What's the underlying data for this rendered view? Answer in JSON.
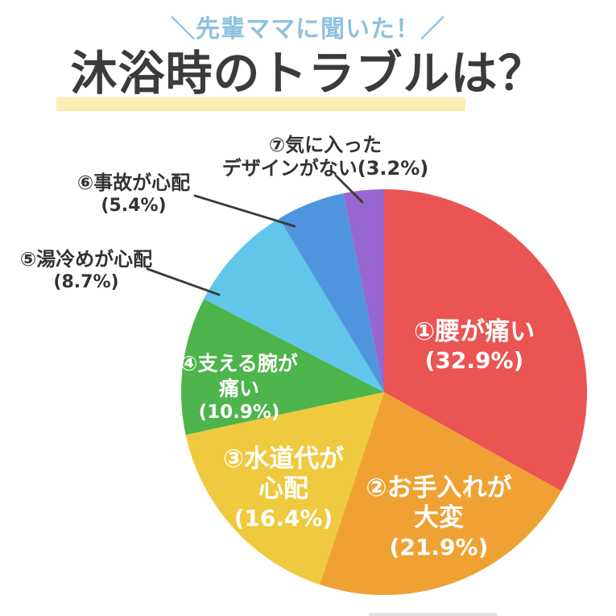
{
  "header": {
    "subtitle": "＼先輩ママに聞いた！／",
    "title": "沐浴時のトラブルは？"
  },
  "chart_data": {
    "type": "pie",
    "title": "沐浴時のトラブルは？",
    "subtitle": "先輩ママに聞いた！",
    "unit": "%",
    "start_angle": "12 o'clock",
    "direction": "clockwise",
    "segments": [
      {
        "rank": 1,
        "label": "腰が痛い",
        "value": 32.9,
        "color": "#EA5452",
        "label_placement": "inside",
        "display": [
          "①腰が痛い",
          "(32.9%)"
        ]
      },
      {
        "rank": 2,
        "label": "お手入れが大変",
        "value": 21.9,
        "color": "#EFA233",
        "label_placement": "inside",
        "display": [
          "②お手入れが",
          "大変",
          "(21.9%)"
        ]
      },
      {
        "rank": 3,
        "label": "水道代が心配",
        "value": 16.4,
        "color": "#EFC93E",
        "label_placement": "inside",
        "display": [
          "③水道代が",
          "心配",
          "(16.4%)"
        ]
      },
      {
        "rank": 4,
        "label": "支える腕が痛い",
        "value": 10.9,
        "color": "#4DB54B",
        "label_placement": "inside",
        "display": [
          "④支える腕が",
          "痛い",
          "(10.9%)"
        ]
      },
      {
        "rank": 5,
        "label": "湯冷めが心配",
        "value": 8.7,
        "color": "#61C6EA",
        "label_placement": "outside",
        "display": [
          "⑤湯冷めが心配",
          "(8.7%)"
        ]
      },
      {
        "rank": 6,
        "label": "事故が心配",
        "value": 5.4,
        "color": "#4F95DD",
        "label_placement": "outside",
        "display": [
          "⑥事故が心配",
          "(5.4%)"
        ]
      },
      {
        "rank": 7,
        "label": "気に入ったデザインがない",
        "value": 3.2,
        "color": "#9766CF",
        "label_placement": "outside",
        "display": [
          "⑦気に入った",
          "デザインがない(3.2%)"
        ]
      }
    ]
  },
  "colors": {
    "background": "#FFFFFF",
    "subtitle_blue": "#8FC1DF",
    "title_text": "#3B3B3B",
    "title_highlight": "#FAEDB3",
    "inside_label": "#FFFFFF",
    "outside_label": "#333333",
    "leader_line": "#3B3B3B"
  }
}
